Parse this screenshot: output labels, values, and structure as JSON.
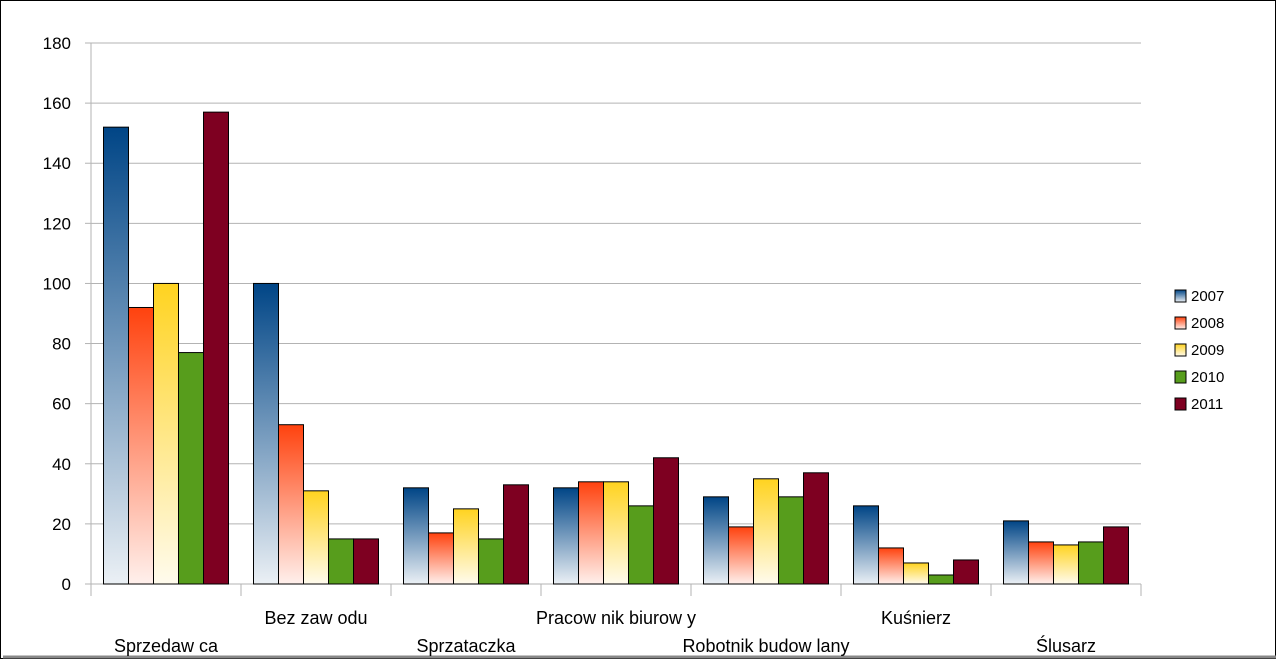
{
  "chart_data": {
    "type": "bar",
    "title": "",
    "xlabel": "",
    "ylabel": "",
    "ylim": [
      0,
      180
    ],
    "yticks": [
      0,
      20,
      40,
      60,
      80,
      100,
      120,
      140,
      160,
      180
    ],
    "grid": true,
    "legend_position": "right",
    "categories": [
      "Sprzedaw ca",
      "Bez zaw odu",
      "Sprzataczka",
      "Pracow nik biurow y",
      "Robotnik budow lany",
      "Kuśnierz",
      "Ślusarz"
    ],
    "series": [
      {
        "name": "2007",
        "color": "#004586",
        "values": [
          152,
          100,
          32,
          32,
          29,
          26,
          21
        ]
      },
      {
        "name": "2008",
        "color": "#ff420e",
        "values": [
          92,
          53,
          17,
          34,
          19,
          12,
          14
        ]
      },
      {
        "name": "2009",
        "color": "#ffd320",
        "values": [
          100,
          31,
          25,
          34,
          35,
          7,
          13
        ]
      },
      {
        "name": "2010",
        "color": "#579d1c",
        "values": [
          77,
          15,
          15,
          26,
          29,
          3,
          14
        ]
      },
      {
        "name": "2011",
        "color": "#7e0021",
        "values": [
          157,
          15,
          33,
          42,
          37,
          8,
          19
        ]
      }
    ]
  }
}
